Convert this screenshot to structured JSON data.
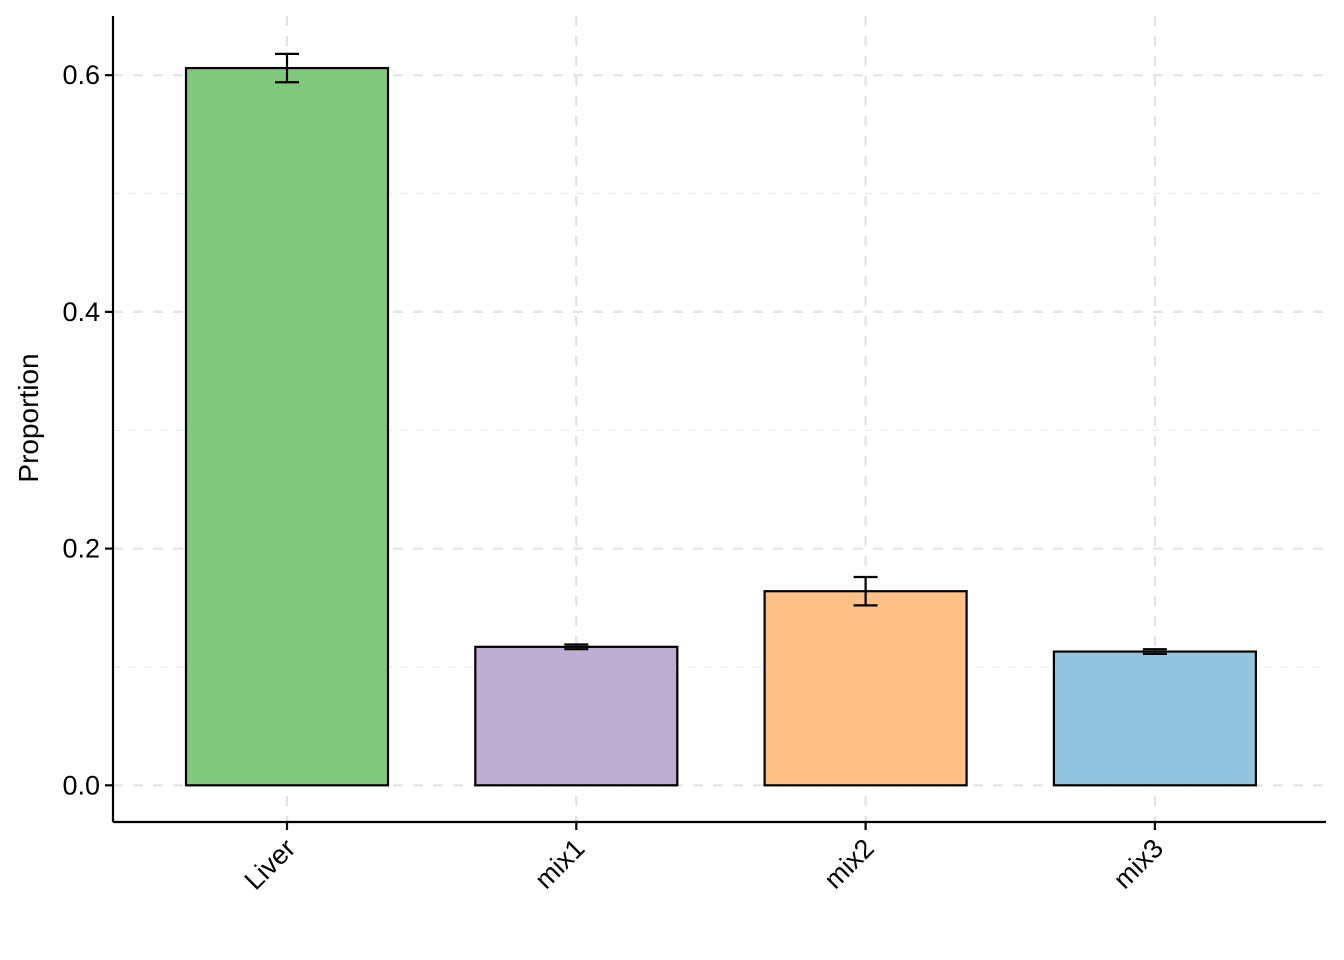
{
  "chart_data": {
    "type": "bar",
    "categories": [
      "Liver",
      "mix1",
      "mix2",
      "mix3"
    ],
    "values": [
      0.606,
      0.117,
      0.164,
      0.113
    ],
    "errors": [
      0.012,
      0.002,
      0.012,
      0.002
    ],
    "colors": [
      "#81C97D",
      "#BEADD3",
      "#FDC086",
      "#94C5DE"
    ],
    "title": "",
    "xlabel": "",
    "ylabel": "Proportion",
    "ylim": [
      -0.031,
      0.65
    ],
    "yticks": [
      0.0,
      0.2,
      0.4,
      0.6
    ],
    "ytick_labels": [
      "0.0",
      "0.2",
      "0.4",
      "0.6"
    ],
    "grid": true,
    "grid_style": "dashed",
    "legend": "none"
  }
}
